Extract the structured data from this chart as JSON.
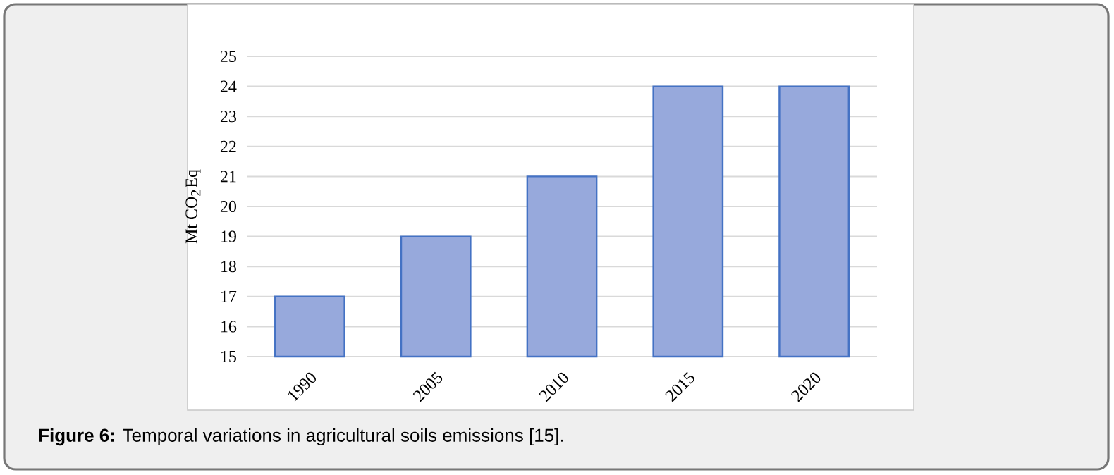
{
  "chart_data": {
    "type": "bar",
    "categories": [
      "1990",
      "2005",
      "2010",
      "2015",
      "2020"
    ],
    "values": [
      17,
      19,
      21,
      24,
      24
    ],
    "color": "#97a9dc",
    "ylabel": "Mt CO$_{2}$Eq",
    "ylim": [
      15,
      25
    ],
    "yticks": [
      15,
      16,
      17,
      18,
      19,
      20,
      21,
      22,
      23,
      24,
      25
    ],
    "grid": "y",
    "annotations": [
      "**Figure 6:** Temporal variations in agricultural soils emissions [15]."
    ]
  }
}
